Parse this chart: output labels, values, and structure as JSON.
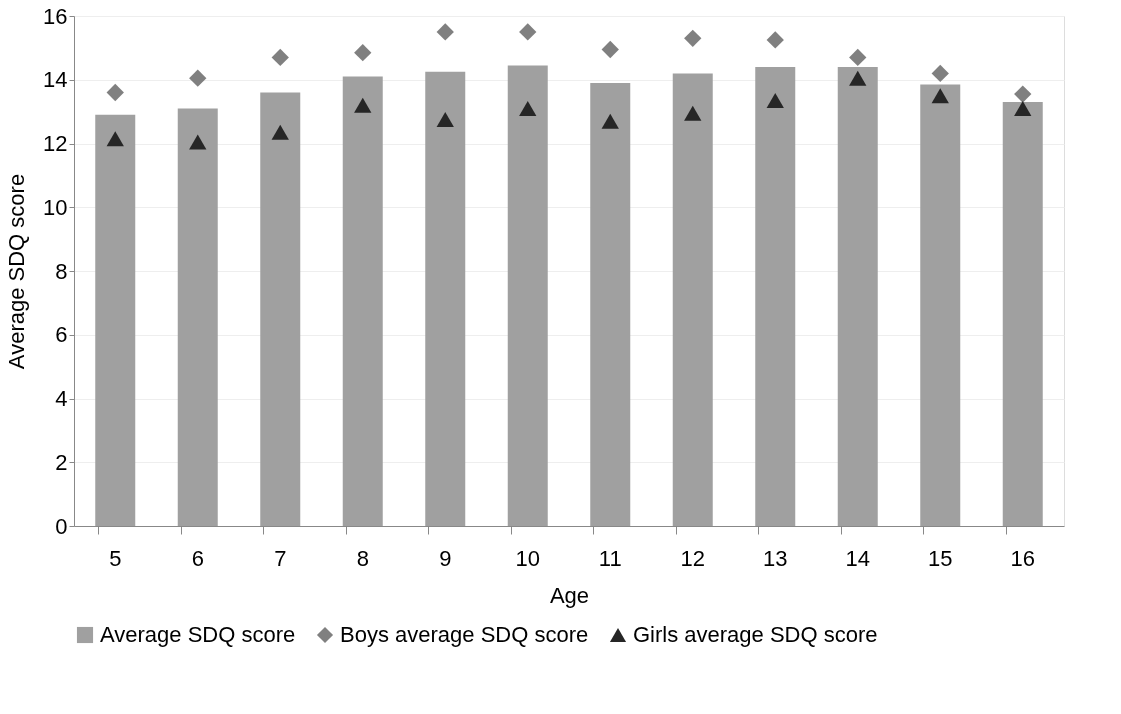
{
  "chart_data": {
    "type": "bar",
    "xlabel": "Age",
    "ylabel": "Average SDQ score",
    "categories": [
      "5",
      "6",
      "7",
      "8",
      "9",
      "10",
      "11",
      "12",
      "13",
      "14",
      "15",
      "16"
    ],
    "series": [
      {
        "name": "Average SDQ score",
        "color": "#a0a0a0",
        "values": [
          12.9,
          13.1,
          13.6,
          14.1,
          14.25,
          14.45,
          13.9,
          14.2,
          14.4,
          14.4,
          13.85,
          13.3
        ]
      },
      {
        "name": "Boys average SDQ score",
        "type": "scatter",
        "marker": "diamond",
        "color": "#808080",
        "values": [
          13.6,
          14.05,
          14.7,
          14.85,
          15.5,
          15.5,
          14.95,
          15.3,
          15.25,
          14.7,
          14.2,
          13.55
        ]
      },
      {
        "name": "Girls average SDQ score",
        "type": "scatter",
        "marker": "triangle",
        "color": "#262626",
        "values": [
          12.15,
          12.05,
          12.35,
          13.2,
          12.75,
          13.1,
          12.7,
          12.95,
          13.35,
          14.05,
          13.5,
          13.1
        ]
      }
    ],
    "ylim": [
      0,
      16
    ],
    "yticks": [
      0,
      2,
      4,
      6,
      8,
      10,
      12,
      14,
      16
    ],
    "grid": "y",
    "legend": "bottom"
  }
}
